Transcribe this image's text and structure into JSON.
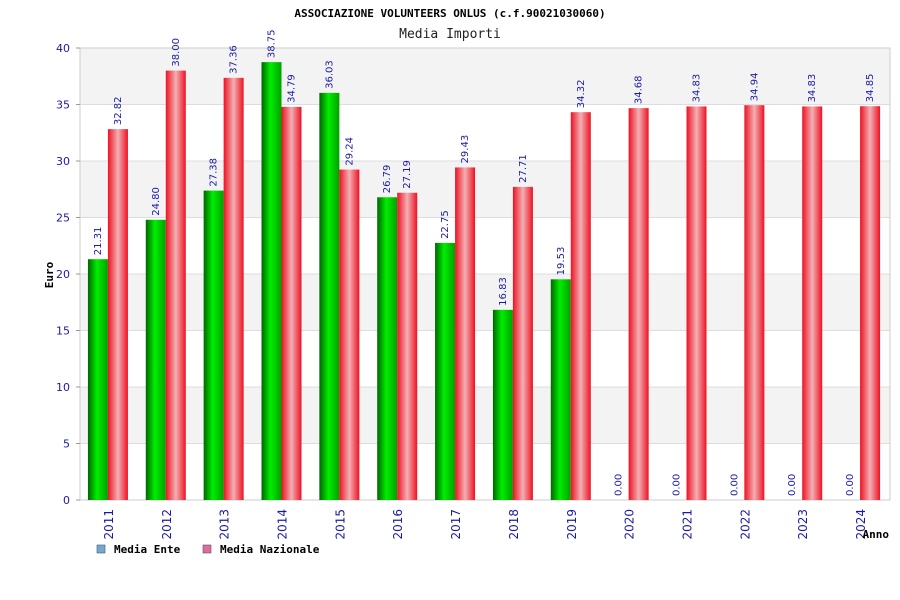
{
  "chart_data": {
    "type": "bar",
    "title": "ASSOCIAZIONE VOLUNTEERS ONLUS (c.f.90021030060)",
    "subtitle": "Media Importi",
    "ylabel": "Euro",
    "xlabel": "Anno",
    "ylim": [
      0,
      40
    ],
    "yticks": [
      0,
      5,
      10,
      15,
      20,
      25,
      30,
      35,
      40
    ],
    "categories": [
      "2011",
      "2012",
      "2013",
      "2014",
      "2015",
      "2016",
      "2017",
      "2018",
      "2019",
      "2020",
      "2021",
      "2022",
      "2023",
      "2024"
    ],
    "series": [
      {
        "name": "Media Ente",
        "legend_color": "#6fa8dc",
        "bar_color": "#00c000",
        "values": [
          21.31,
          24.8,
          27.38,
          38.75,
          36.03,
          26.79,
          22.75,
          16.83,
          19.53,
          0.0,
          0.0,
          0.0,
          0.0,
          0.0
        ],
        "labels": [
          "21.31",
          "24.80",
          "27.38",
          "38.75",
          "36.03",
          "26.79",
          "22.75",
          "16.83",
          "19.53",
          "0.00",
          "0.00",
          "0.00",
          "0.00",
          "0.00"
        ]
      },
      {
        "name": "Media Nazionale",
        "legend_color": "#e06c9f",
        "bar_color": "#e8202a",
        "values": [
          32.82,
          38.0,
          37.36,
          34.79,
          29.24,
          27.19,
          29.43,
          27.71,
          34.32,
          34.68,
          34.83,
          34.94,
          34.83,
          34.85
        ],
        "labels": [
          "32.82",
          "38.00",
          "37.36",
          "34.79",
          "29.24",
          "27.19",
          "29.43",
          "27.71",
          "34.32",
          "34.68",
          "34.83",
          "34.94",
          "34.83",
          "34.85"
        ]
      }
    ],
    "grid": true,
    "legend_position": "bottom-left"
  }
}
